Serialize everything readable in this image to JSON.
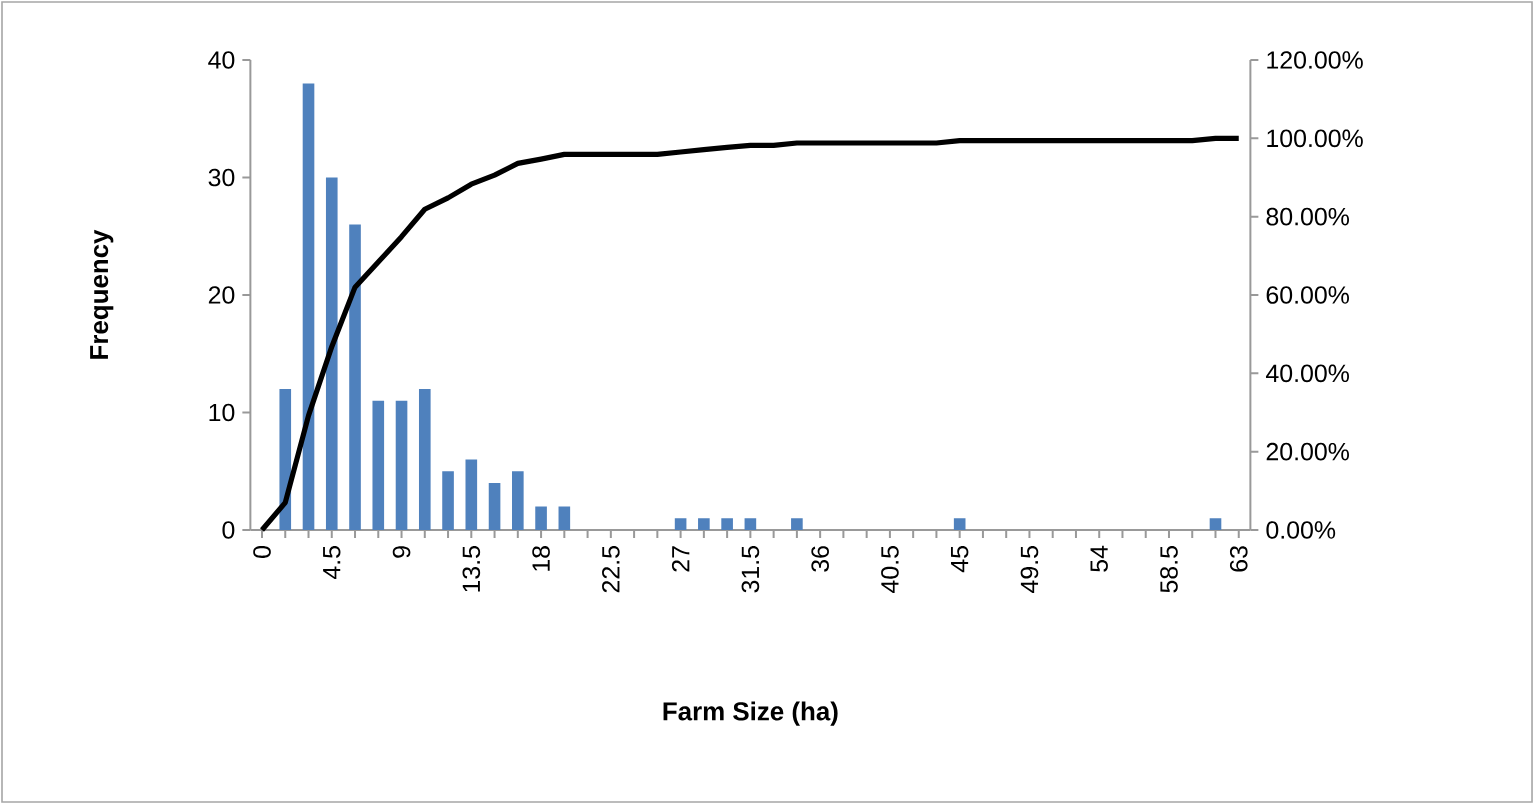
{
  "chart_data": {
    "type": "bar",
    "xlabel": "Farm Size  (ha)",
    "ylabel": "Frequency",
    "categories": [
      "0",
      null,
      null,
      "4.5",
      null,
      null,
      "9",
      null,
      null,
      "13.5",
      null,
      null,
      "18",
      null,
      null,
      "22.5",
      null,
      null,
      "27",
      null,
      null,
      "31.5",
      null,
      null,
      "36",
      null,
      null,
      "40.5",
      null,
      null,
      "45",
      null,
      null,
      "49.5",
      null,
      null,
      "54",
      null,
      null,
      "58.5",
      null,
      null,
      "63"
    ],
    "series": [
      {
        "color": "#4f81bd",
        "values": [
          0,
          12,
          38,
          30,
          26,
          11,
          11,
          12,
          5,
          6,
          4,
          5,
          2,
          2,
          0,
          0,
          0,
          0,
          1,
          1,
          1,
          1,
          0,
          1,
          0,
          0,
          0,
          0,
          0,
          0,
          1,
          0,
          0,
          0,
          0,
          0,
          0,
          0,
          0,
          0,
          0,
          1,
          0
        ]
      },
      {
        "type": "line",
        "axis": "y2",
        "color": "#000000",
        "values": [
          0,
          7,
          29.2,
          46.8,
          62,
          68.4,
          74.9,
          81.9,
          84.8,
          88.3,
          90.6,
          93.6,
          94.7,
          95.9,
          95.9,
          95.9,
          95.9,
          95.9,
          96.5,
          97.1,
          97.7,
          98.2,
          98.2,
          98.8,
          98.8,
          98.8,
          98.8,
          98.8,
          98.8,
          98.8,
          99.4,
          99.4,
          99.4,
          99.4,
          99.4,
          99.4,
          99.4,
          99.4,
          99.4,
          99.4,
          99.4,
          100,
          100
        ]
      }
    ],
    "ylim": [
      0,
      40
    ],
    "yticks": [
      0,
      10,
      20,
      30,
      40
    ],
    "y2lim": [
      0,
      120
    ],
    "y2ticks": [
      {
        "value": 0,
        "label": "0.00%"
      },
      {
        "value": 20,
        "label": "20.00%"
      },
      {
        "value": 40,
        "label": "40.00%"
      },
      {
        "value": 60,
        "label": "60.00%"
      },
      {
        "value": 80,
        "label": "80.00%"
      },
      {
        "value": 100,
        "label": "100.00%"
      },
      {
        "value": 120,
        "label": "120.00%"
      }
    ],
    "grid": false
  }
}
